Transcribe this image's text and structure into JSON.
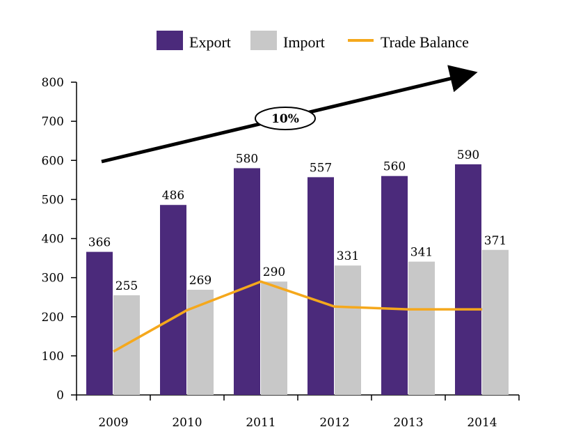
{
  "chart_data": {
    "type": "bar",
    "title": "",
    "xlabel": "",
    "ylabel": "",
    "categories": [
      "2009",
      "2010",
      "2011",
      "2012",
      "2013",
      "2014"
    ],
    "ylim": [
      0,
      800
    ],
    "yticks": [
      0,
      100,
      200,
      300,
      400,
      500,
      600,
      700,
      800
    ],
    "ytick_labels": [
      "0",
      "100",
      "200",
      "300",
      "400",
      "500",
      "600",
      "700",
      "800"
    ],
    "series": [
      {
        "name": "Export",
        "kind": "bar",
        "color": "#4b2a7b",
        "values": [
          366,
          486,
          580,
          557,
          560,
          590
        ],
        "labels": [
          "366",
          "486",
          "580",
          "557",
          "560",
          "590"
        ]
      },
      {
        "name": "Import",
        "kind": "bar",
        "color": "#c8c8c8",
        "values": [
          255,
          269,
          290,
          331,
          341,
          371
        ],
        "labels": [
          "255",
          "269",
          "290",
          "331",
          "341",
          "371"
        ]
      },
      {
        "name": "Trade Balance",
        "kind": "line",
        "color": "#f5a81c",
        "values": [
          111,
          217,
          290,
          226,
          219,
          219
        ]
      }
    ],
    "legend": {
      "position": "top",
      "entries": [
        "Export",
        "Import",
        "Trade Balance"
      ]
    },
    "annotation": {
      "label": "10%",
      "from": 595,
      "to": 815,
      "description": "growth trend arrow"
    },
    "grid": false
  }
}
